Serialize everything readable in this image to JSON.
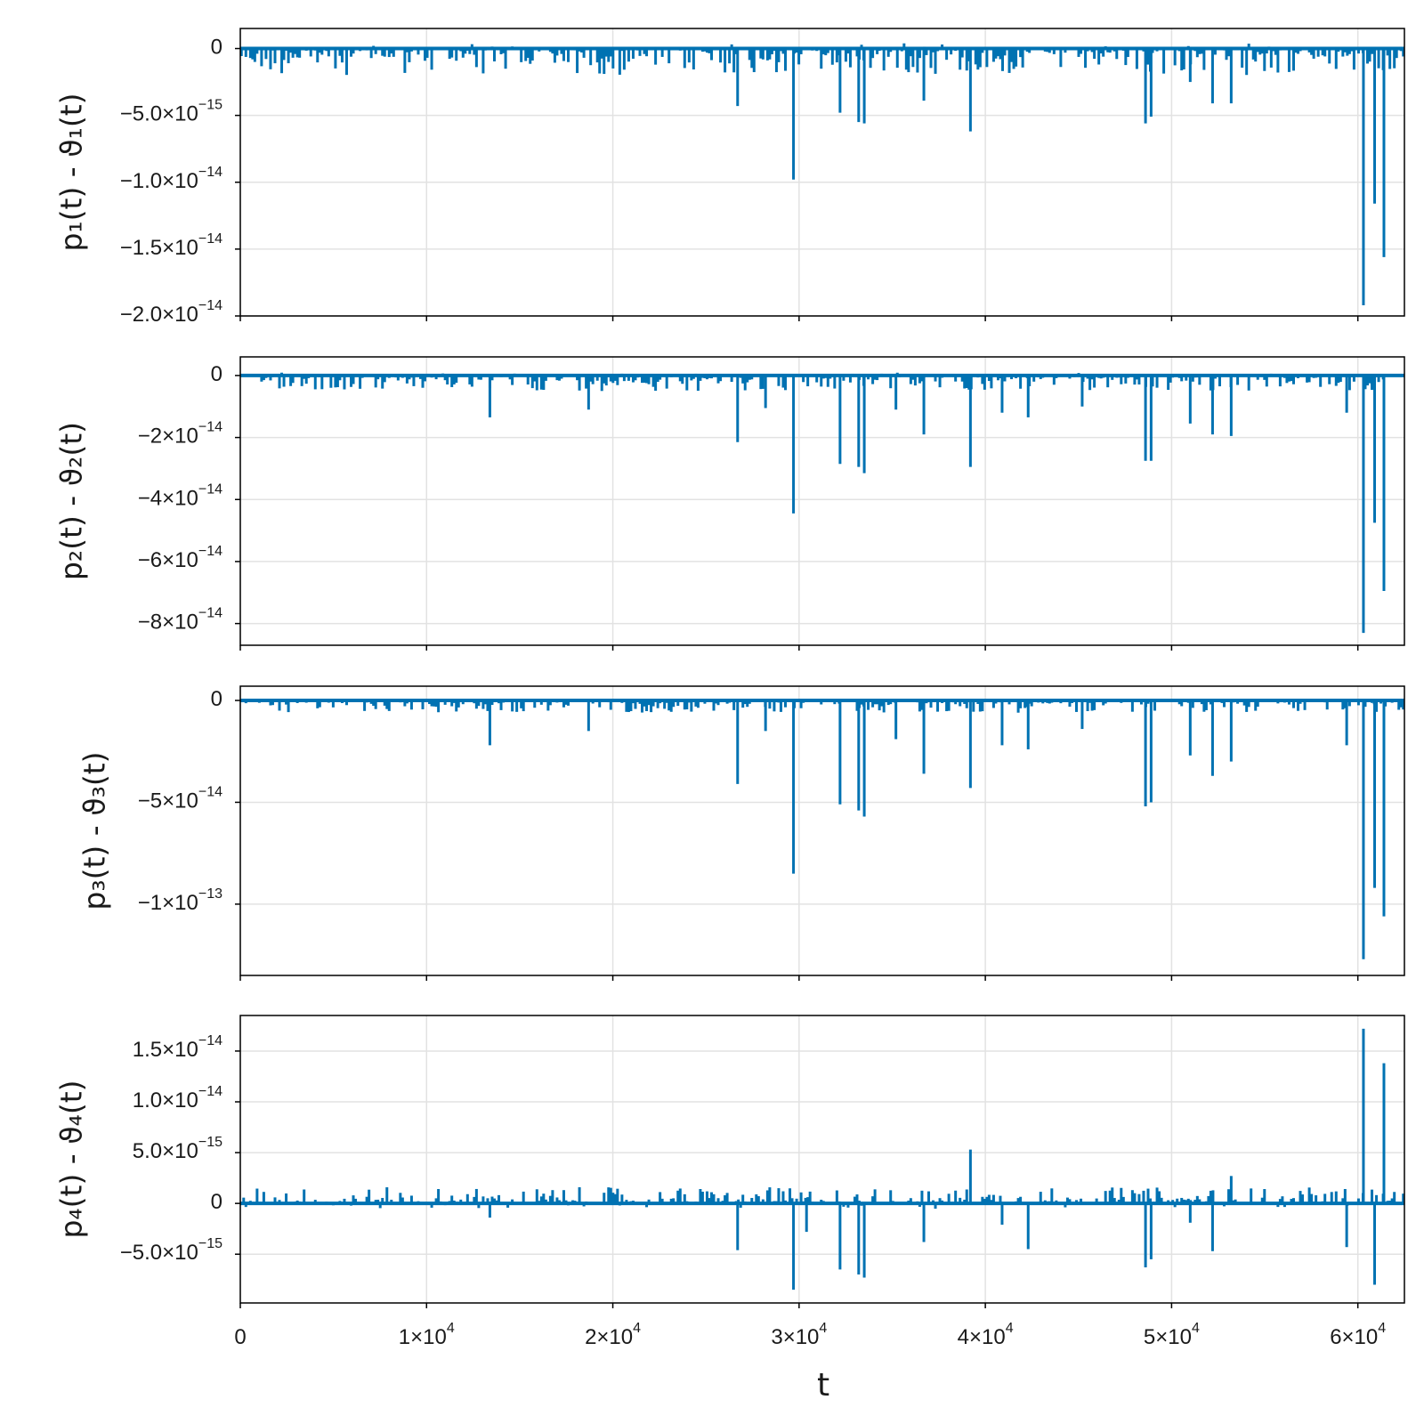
{
  "chart_data": [
    {
      "type": "bar",
      "ylabel": "p₁(t) - ϑ₁(t)",
      "xlabel": "",
      "xlim": [
        0,
        62500
      ],
      "ylim": [
        -2e-14,
        1.5e-15
      ],
      "grid": true,
      "color": "#0072B2",
      "yticks": [
        {
          "value": 0,
          "label": "0",
          "exp": ""
        },
        {
          "value": -5e-15,
          "label": "−5.0×10",
          "exp": "−15"
        },
        {
          "value": -1e-14,
          "label": "−1.0×10",
          "exp": "−14"
        },
        {
          "value": -1.5e-14,
          "label": "−1.5×10",
          "exp": "−14"
        },
        {
          "value": -2e-14,
          "label": "−2.0×10",
          "exp": "−14"
        }
      ],
      "spikes": [
        {
          "x": 26700,
          "y": -4.3e-15
        },
        {
          "x": 29700,
          "y": -9.8e-15
        },
        {
          "x": 32200,
          "y": -4.8e-15
        },
        {
          "x": 33200,
          "y": -5.5e-15
        },
        {
          "x": 33500,
          "y": -5.6e-15
        },
        {
          "x": 36700,
          "y": -3.9e-15
        },
        {
          "x": 39200,
          "y": -6.2e-15
        },
        {
          "x": 48600,
          "y": -5.6e-15
        },
        {
          "x": 48900,
          "y": -5.1e-15
        },
        {
          "x": 51000,
          "y": -2.5e-15
        },
        {
          "x": 52200,
          "y": -4.1e-15
        },
        {
          "x": 53200,
          "y": -4.1e-15
        },
        {
          "x": 60300,
          "y": -1.92e-14
        },
        {
          "x": 60900,
          "y": -1.16e-14
        },
        {
          "x": 61400,
          "y": -1.56e-14
        }
      ],
      "noise": {
        "min": -2e-15,
        "max": 4e-16
      }
    },
    {
      "type": "bar",
      "ylabel": "p₂(t) - ϑ₂(t)",
      "xlabel": "",
      "xlim": [
        0,
        62500
      ],
      "ylim": [
        -8.7e-14,
        6e-15
      ],
      "grid": true,
      "color": "#0072B2",
      "yticks": [
        {
          "value": 0,
          "label": "0",
          "exp": ""
        },
        {
          "value": -2e-14,
          "label": "−2×10",
          "exp": "−14"
        },
        {
          "value": -4e-14,
          "label": "−4×10",
          "exp": "−14"
        },
        {
          "value": -6e-14,
          "label": "−6×10",
          "exp": "−14"
        },
        {
          "value": -8e-14,
          "label": "−8×10",
          "exp": "−14"
        }
      ],
      "spikes": [
        {
          "x": 13400,
          "y": -1.35e-14
        },
        {
          "x": 18700,
          "y": -1.1e-14
        },
        {
          "x": 26700,
          "y": -2.15e-14
        },
        {
          "x": 28200,
          "y": -1.05e-14
        },
        {
          "x": 29700,
          "y": -4.45e-14
        },
        {
          "x": 32200,
          "y": -2.85e-14
        },
        {
          "x": 33200,
          "y": -2.95e-14
        },
        {
          "x": 33500,
          "y": -3.15e-14
        },
        {
          "x": 35200,
          "y": -1.1e-14
        },
        {
          "x": 36700,
          "y": -1.9e-14
        },
        {
          "x": 39200,
          "y": -2.95e-14
        },
        {
          "x": 40900,
          "y": -1.2e-14
        },
        {
          "x": 42300,
          "y": -1.35e-14
        },
        {
          "x": 45200,
          "y": -1e-14
        },
        {
          "x": 48600,
          "y": -2.75e-14
        },
        {
          "x": 48900,
          "y": -2.75e-14
        },
        {
          "x": 51000,
          "y": -1.55e-14
        },
        {
          "x": 52200,
          "y": -1.9e-14
        },
        {
          "x": 53200,
          "y": -1.95e-14
        },
        {
          "x": 59400,
          "y": -1.2e-14
        },
        {
          "x": 60300,
          "y": -8.3e-14
        },
        {
          "x": 60900,
          "y": -4.75e-14
        },
        {
          "x": 61400,
          "y": -6.95e-14
        }
      ],
      "noise": {
        "min": -5e-15,
        "max": 1e-15
      }
    },
    {
      "type": "bar",
      "ylabel": "p₃(t) - ϑ₃(t)",
      "xlabel": "",
      "xlim": [
        0,
        62500
      ],
      "ylim": [
        -1.35e-13,
        7e-15
      ],
      "grid": true,
      "color": "#0072B2",
      "yticks": [
        {
          "value": 0,
          "label": "0",
          "exp": ""
        },
        {
          "value": -5e-14,
          "label": "−5×10",
          "exp": "−14"
        },
        {
          "value": -1e-13,
          "label": "−1×10",
          "exp": "−13"
        }
      ],
      "spikes": [
        {
          "x": 13400,
          "y": -2.2e-14
        },
        {
          "x": 18700,
          "y": -1.5e-14
        },
        {
          "x": 26700,
          "y": -4.1e-14
        },
        {
          "x": 28200,
          "y": -1.5e-14
        },
        {
          "x": 29700,
          "y": -8.5e-14
        },
        {
          "x": 32200,
          "y": -5.1e-14
        },
        {
          "x": 33200,
          "y": -5.4e-14
        },
        {
          "x": 33500,
          "y": -5.7e-14
        },
        {
          "x": 35200,
          "y": -1.9e-14
        },
        {
          "x": 36700,
          "y": -3.6e-14
        },
        {
          "x": 39200,
          "y": -4.3e-14
        },
        {
          "x": 40900,
          "y": -2.2e-14
        },
        {
          "x": 42300,
          "y": -2.4e-14
        },
        {
          "x": 45200,
          "y": -1.4e-14
        },
        {
          "x": 48600,
          "y": -5.2e-14
        },
        {
          "x": 48900,
          "y": -5e-14
        },
        {
          "x": 51000,
          "y": -2.7e-14
        },
        {
          "x": 52200,
          "y": -3.7e-14
        },
        {
          "x": 53200,
          "y": -3e-14
        },
        {
          "x": 59400,
          "y": -2.2e-14
        },
        {
          "x": 60300,
          "y": -1.27e-13
        },
        {
          "x": 60900,
          "y": -9.2e-14
        },
        {
          "x": 61400,
          "y": -1.06e-13
        }
      ],
      "noise": {
        "min": -6e-15,
        "max": 8e-16
      }
    },
    {
      "type": "bar",
      "ylabel": "p₄(t) - ϑ₄(t)",
      "xlabel": "t",
      "xlim": [
        0,
        62500
      ],
      "ylim": [
        -9.8e-15,
        1.85e-14
      ],
      "grid": true,
      "color": "#0072B2",
      "yticks": [
        {
          "value": 1.5e-14,
          "label": "1.5×10",
          "exp": "−14"
        },
        {
          "value": 1e-14,
          "label": "1.0×10",
          "exp": "−14"
        },
        {
          "value": 5e-15,
          "label": "5.0×10",
          "exp": "−15"
        },
        {
          "value": 0,
          "label": "0",
          "exp": ""
        },
        {
          "value": -5e-15,
          "label": "−5.0×10",
          "exp": "−15"
        }
      ],
      "xticks": [
        {
          "value": 0,
          "label": "0",
          "exp": ""
        },
        {
          "value": 10000,
          "label": "1×10",
          "exp": "4"
        },
        {
          "value": 20000,
          "label": "2×10",
          "exp": "4"
        },
        {
          "value": 30000,
          "label": "3×10",
          "exp": "4"
        },
        {
          "value": 40000,
          "label": "4×10",
          "exp": "4"
        },
        {
          "value": 50000,
          "label": "5×10",
          "exp": "4"
        },
        {
          "value": 60000,
          "label": "6×10",
          "exp": "4"
        }
      ],
      "spikes": [
        {
          "x": 13400,
          "y": -1.4e-15
        },
        {
          "x": 26700,
          "y": -4.6e-15
        },
        {
          "x": 29700,
          "y": -8.5e-15
        },
        {
          "x": 30400,
          "y": -2.8e-15
        },
        {
          "x": 32200,
          "y": -6.5e-15
        },
        {
          "x": 33200,
          "y": -7e-15
        },
        {
          "x": 33500,
          "y": -7.3e-15
        },
        {
          "x": 36700,
          "y": -3.8e-15
        },
        {
          "x": 39200,
          "y": 5.3e-15
        },
        {
          "x": 40900,
          "y": -2.1e-15
        },
        {
          "x": 42300,
          "y": -4.5e-15
        },
        {
          "x": 48600,
          "y": -6.3e-15
        },
        {
          "x": 48900,
          "y": -5.5e-15
        },
        {
          "x": 51000,
          "y": -1.9e-15
        },
        {
          "x": 52200,
          "y": -4.7e-15
        },
        {
          "x": 53200,
          "y": 2.7e-15
        },
        {
          "x": 59400,
          "y": -4.3e-15
        },
        {
          "x": 60300,
          "y": 1.72e-14
        },
        {
          "x": 60900,
          "y": -8e-15
        },
        {
          "x": 61400,
          "y": 1.38e-14
        }
      ],
      "noise": {
        "min": -5e-16,
        "max": 1.6e-15
      }
    }
  ]
}
